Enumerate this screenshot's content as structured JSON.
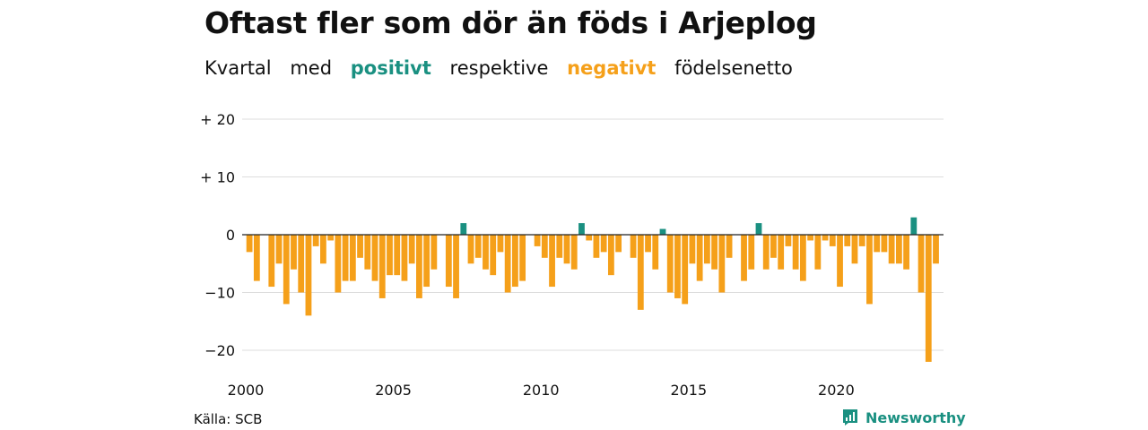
{
  "title": "Oftast fler som dör än föds i Arjeplog",
  "subtitle": {
    "w1": "Kvartal",
    "w2": "med",
    "positive": "positivt",
    "w3": "respektive",
    "negative": "negativt",
    "w4": "födelsenetto"
  },
  "source": "Källa: SCB",
  "brand": "Newsworthy",
  "colors": {
    "positive": "#1a9081",
    "negative": "#f5a01a",
    "grid": "#dddddd",
    "zero": "#222222"
  },
  "chart_data": {
    "type": "bar",
    "title": "Oftast fler som dör än föds i Arjeplog",
    "xlabel": "",
    "ylabel": "",
    "grid": true,
    "ylim": [
      -22,
      20
    ],
    "y_ticks": [
      {
        "value": 20,
        "label": "+ 20"
      },
      {
        "value": 10,
        "label": "+ 10"
      },
      {
        "value": 0,
        "label": "0"
      },
      {
        "value": -10,
        "label": "−10"
      },
      {
        "value": -20,
        "label": "−20"
      }
    ],
    "x_ticks": [
      {
        "value": 2000,
        "label": "2000"
      },
      {
        "value": 2005,
        "label": "2005"
      },
      {
        "value": 2010,
        "label": "2010"
      },
      {
        "value": 2015,
        "label": "2015"
      },
      {
        "value": 2020,
        "label": "2020"
      }
    ],
    "start_year": 2000,
    "start_quarter": 1,
    "values": [
      -3,
      -8,
      0,
      -9,
      -5,
      -12,
      -6,
      -10,
      -14,
      -2,
      -5,
      -1,
      -10,
      -8,
      -8,
      -4,
      -6,
      -8,
      -11,
      -7,
      -7,
      -8,
      -5,
      -11,
      -9,
      -6,
      0,
      -9,
      -11,
      2,
      -5,
      -4,
      -6,
      -7,
      -3,
      -10,
      -9,
      -8,
      0,
      -2,
      -4,
      -9,
      -4,
      -5,
      -6,
      2,
      -1,
      -4,
      -3,
      -7,
      -3,
      0,
      -4,
      -13,
      -3,
      -6,
      1,
      -10,
      -11,
      -12,
      -5,
      -8,
      -5,
      -6,
      -10,
      -4,
      0,
      -8,
      -6,
      2,
      -6,
      -4,
      -6,
      -2,
      -6,
      -8,
      -1,
      -6,
      -1,
      -2,
      -9,
      -2,
      -5,
      -2,
      -12,
      -3,
      -3,
      -5,
      -5,
      -6,
      3,
      -10,
      -22,
      -5
    ]
  }
}
